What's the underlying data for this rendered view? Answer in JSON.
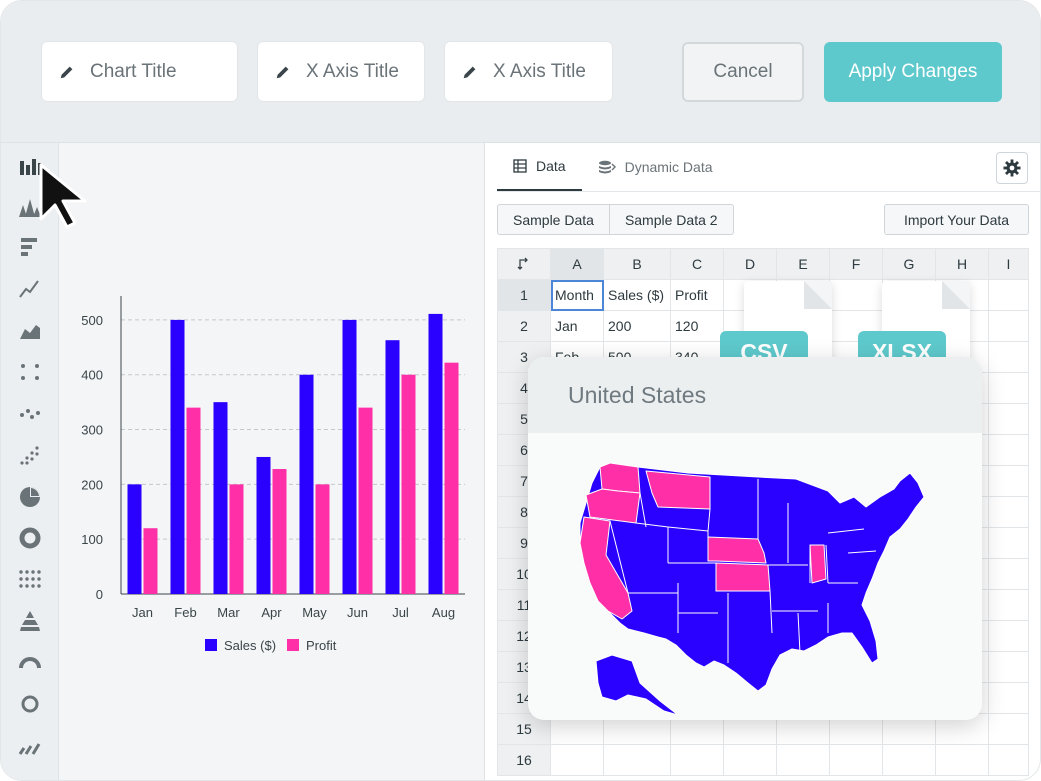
{
  "toolbar": {
    "chart_title_placeholder": "Chart Title",
    "x_axis_title_placeholder": "X Axis Title",
    "x_axis_title_placeholder_2": "X Axis Title",
    "cancel_label": "Cancel",
    "apply_label": "Apply Changes",
    "accent_color": "#5ec9cc"
  },
  "rail": {
    "icons": [
      "bar-chart-icon",
      "histogram-icon",
      "horizontal-bar-icon",
      "line-chart-icon",
      "area-chart-icon",
      "scatter-icon",
      "dot-plot-icon",
      "bubble-icon",
      "pie-chart-icon",
      "donut-icon",
      "dot-grid-icon",
      "pyramid-icon",
      "gauge-icon",
      "ring-icon",
      "sparkline-icon"
    ]
  },
  "chart_data": {
    "type": "bar",
    "categories": [
      "Jan",
      "Feb",
      "Mar",
      "Apr",
      "May",
      "Jun",
      "Jul",
      "Aug"
    ],
    "series": [
      {
        "name": "Sales ($)",
        "color": "#2a00ff",
        "values": [
          200,
          500,
          350,
          250,
          400,
          500,
          463,
          511
        ]
      },
      {
        "name": "Profit",
        "color": "#ff2fa8",
        "values": [
          120,
          340,
          200,
          228,
          200,
          340,
          400,
          422
        ]
      }
    ],
    "yticks": [
      "0",
      "100",
      "200",
      "300",
      "400",
      "500"
    ],
    "ylim": [
      0,
      540
    ],
    "grid": true,
    "legend_position": "bottom"
  },
  "data_panel": {
    "tabs": [
      {
        "label": "Data",
        "icon": "table-icon"
      },
      {
        "label": "Dynamic Data",
        "icon": "database-icon"
      }
    ],
    "sample_buttons": [
      "Sample Data",
      "Sample Data 2"
    ],
    "import_label": "Import Your Data",
    "columns": [
      "A",
      "B",
      "C",
      "D",
      "E",
      "F",
      "G",
      "H",
      "I"
    ],
    "row_numbers": [
      "1",
      "2",
      "3",
      "4",
      "5",
      "6",
      "7",
      "8",
      "9",
      "10",
      "11",
      "12",
      "13",
      "14",
      "15",
      "16"
    ],
    "cells": [
      [
        "Month",
        "Sales ($)",
        "Profit"
      ],
      [
        "Jan",
        "200",
        "120"
      ],
      [
        "Feb",
        "500",
        "340"
      ]
    ]
  },
  "map_card": {
    "title": "United States",
    "base_color": "#2a00ff",
    "highlight_color": "#ff2fa8"
  },
  "files": {
    "csv_label": "CSV",
    "xlsx_label": "XLSX"
  }
}
